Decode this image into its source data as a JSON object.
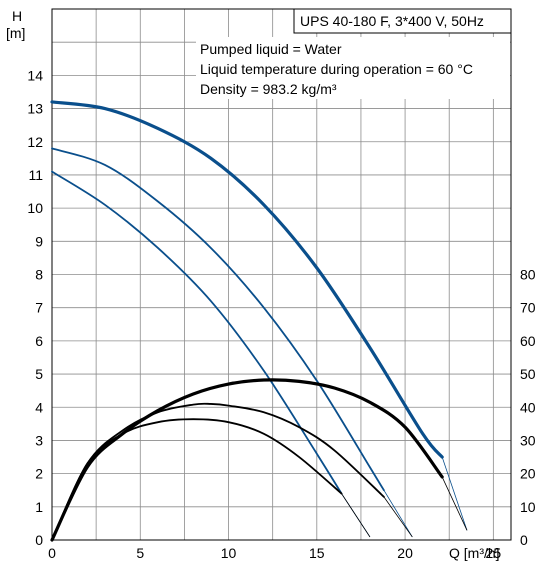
{
  "chart_data": {
    "type": "line",
    "title": "UPS 40-180 F, 3*400 V, 50Hz",
    "annotations": [
      "Pumped liquid = Water",
      "Liquid temperature during operation = 60 °C",
      "Density = 983.2 kg/m³"
    ],
    "ylabel_symbol": "H",
    "ylabel_unit": "[m]",
    "xlabel": "Q [m³/h]",
    "xlim": [
      0,
      26
    ],
    "ylim": [
      0,
      16
    ],
    "y2lim": [
      0,
      160
    ],
    "x_ticks": [
      0,
      5,
      10,
      15,
      20,
      25
    ],
    "y_ticks": [
      0,
      1,
      2,
      3,
      4,
      5,
      6,
      7,
      8,
      9,
      10,
      11,
      12,
      13,
      14
    ],
    "y2_ticks": [
      0,
      10,
      20,
      30,
      40,
      50,
      60,
      70,
      80
    ],
    "grid": true,
    "colors": {
      "head": "#0a4f8c",
      "power": "#000000",
      "grid": "#8c8c8c"
    },
    "series": [
      {
        "kind": "head",
        "bold": true,
        "x": [
          0,
          3,
          6,
          9,
          12,
          15,
          18,
          21,
          22.1
        ],
        "y": [
          13.2,
          13.0,
          12.4,
          11.5,
          10.1,
          8.2,
          5.8,
          3.2,
          2.5
        ]
      },
      {
        "kind": "head-thin",
        "x": [
          22.1,
          23.5
        ],
        "y": [
          2.5,
          0.3
        ]
      },
      {
        "kind": "head",
        "bold": false,
        "x": [
          0,
          3,
          6,
          9,
          12,
          15,
          18,
          18.8
        ],
        "y": [
          11.8,
          11.3,
          10.2,
          8.8,
          7.0,
          4.8,
          2.2,
          1.5
        ]
      },
      {
        "kind": "head-thin",
        "x": [
          18.8,
          20.4
        ],
        "y": [
          1.5,
          0.1
        ]
      },
      {
        "kind": "head",
        "bold": false,
        "x": [
          0,
          3,
          6,
          9,
          12,
          15,
          16.4
        ],
        "y": [
          11.1,
          10.1,
          8.8,
          7.2,
          5.1,
          2.6,
          1.4
        ]
      },
      {
        "kind": "head-thin",
        "x": [
          16.4,
          18.0
        ],
        "y": [
          1.4,
          0.1
        ]
      },
      {
        "kind": "power",
        "bold": true,
        "x": [
          0,
          2,
          4,
          6,
          8,
          10,
          12,
          14,
          16,
          18,
          20,
          22.1
        ],
        "y": [
          0,
          22,
          32,
          39,
          44,
          47,
          48.2,
          47.8,
          45.8,
          41.5,
          34,
          19
        ]
      },
      {
        "kind": "power-thin",
        "x": [
          22.1,
          23.5
        ],
        "y": [
          19,
          3
        ]
      },
      {
        "kind": "power",
        "bold": false,
        "x": [
          0,
          2,
          4,
          6,
          8,
          9,
          10,
          12,
          14,
          16,
          18.8
        ],
        "y": [
          0,
          23,
          33,
          38.5,
          40.8,
          41,
          40.5,
          38.5,
          34,
          27,
          13
        ]
      },
      {
        "kind": "power-thin",
        "x": [
          18.8,
          20.4
        ],
        "y": [
          13,
          1
        ]
      },
      {
        "kind": "power",
        "bold": false,
        "x": [
          0,
          2,
          4,
          6,
          8,
          10,
          12,
          14,
          16.4
        ],
        "y": [
          0,
          23,
          32,
          35.5,
          36.4,
          35.5,
          32,
          25,
          14
        ]
      },
      {
        "kind": "power-thin",
        "x": [
          16.4,
          18.0
        ],
        "y": [
          14,
          1
        ]
      }
    ]
  }
}
